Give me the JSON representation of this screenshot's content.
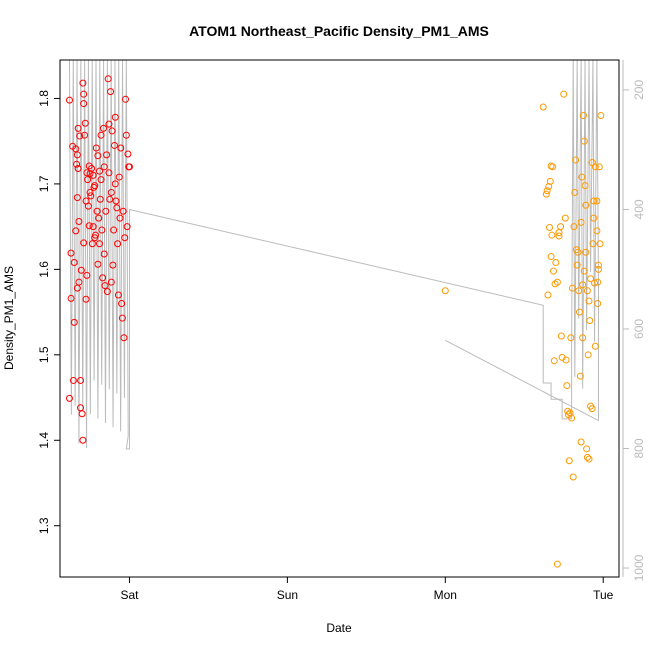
{
  "chart_data": {
    "type": "scatter",
    "title": "ATOM1 Northeast_Pacific Density_PM1_AMS",
    "xlabel": "Date",
    "ylabel": "Density_PM1_AMS",
    "x_ticks": [
      "Sat",
      "Sun",
      "Mon",
      "Tue"
    ],
    "x_tick_days": [
      1,
      2,
      3,
      4
    ],
    "xlim_days": [
      0.56,
      4.1
    ],
    "ylim": [
      1.24,
      1.845
    ],
    "y_ticks": [
      1.3,
      1.4,
      1.5,
      1.6,
      1.7,
      1.8
    ],
    "y2_label": "",
    "y2_ticks": [
      200,
      400,
      600,
      800,
      1000
    ],
    "y2lim": [
      1015,
      150
    ],
    "colors": {
      "points_early": "#ff0000",
      "points_late": "#ff9900",
      "altitude_line": "#bbbbbb",
      "axis": "#000000",
      "right_axis": "#bbbbbb"
    },
    "series": [
      {
        "color": "points_early",
        "points": [
          [
            0.62,
            1.449
          ],
          [
            0.62,
            1.798
          ],
          [
            0.63,
            1.566
          ],
          [
            0.63,
            1.619
          ],
          [
            0.64,
            1.744
          ],
          [
            0.645,
            1.47
          ],
          [
            0.65,
            1.538
          ],
          [
            0.65,
            1.608
          ],
          [
            0.66,
            1.645
          ],
          [
            0.66,
            1.741
          ],
          [
            0.665,
            1.723
          ],
          [
            0.67,
            1.578
          ],
          [
            0.67,
            1.684
          ],
          [
            0.67,
            1.734
          ],
          [
            0.675,
            1.765
          ],
          [
            0.675,
            1.718
          ],
          [
            0.68,
            1.656
          ],
          [
            0.68,
            1.585
          ],
          [
            0.685,
            1.756
          ],
          [
            0.69,
            1.438
          ],
          [
            0.69,
            1.47
          ],
          [
            0.695,
            1.599
          ],
          [
            0.7,
            1.431
          ],
          [
            0.705,
            1.4
          ],
          [
            0.705,
            1.818
          ],
          [
            0.71,
            1.805
          ],
          [
            0.71,
            1.794
          ],
          [
            0.71,
            1.631
          ],
          [
            0.715,
            1.757
          ],
          [
            0.72,
            1.771
          ],
          [
            0.725,
            1.68
          ],
          [
            0.725,
            1.565
          ],
          [
            0.73,
            1.713
          ],
          [
            0.73,
            1.593
          ],
          [
            0.735,
            1.705
          ],
          [
            0.74,
            1.674
          ],
          [
            0.745,
            1.721
          ],
          [
            0.745,
            1.651
          ],
          [
            0.75,
            1.712
          ],
          [
            0.75,
            1.69
          ],
          [
            0.755,
            1.686
          ],
          [
            0.76,
            1.718
          ],
          [
            0.765,
            1.63
          ],
          [
            0.77,
            1.71
          ],
          [
            0.77,
            1.65
          ],
          [
            0.775,
            1.696
          ],
          [
            0.78,
            1.698
          ],
          [
            0.78,
            1.637
          ],
          [
            0.785,
            1.64
          ],
          [
            0.79,
            1.742
          ],
          [
            0.795,
            1.668
          ],
          [
            0.8,
            1.733
          ],
          [
            0.8,
            1.606
          ],
          [
            0.805,
            1.66
          ],
          [
            0.81,
            1.715
          ],
          [
            0.81,
            1.63
          ],
          [
            0.815,
            1.682
          ],
          [
            0.82,
            1.757
          ],
          [
            0.82,
            1.705
          ],
          [
            0.825,
            1.646
          ],
          [
            0.83,
            1.59
          ],
          [
            0.835,
            1.765
          ],
          [
            0.84,
            1.72
          ],
          [
            0.84,
            1.618
          ],
          [
            0.845,
            1.581
          ],
          [
            0.85,
            1.668
          ],
          [
            0.855,
            1.734
          ],
          [
            0.86,
            1.574
          ],
          [
            0.865,
            1.823
          ],
          [
            0.87,
            1.713
          ],
          [
            0.87,
            1.77
          ],
          [
            0.875,
            1.682
          ],
          [
            0.88,
            1.808
          ],
          [
            0.885,
            1.69
          ],
          [
            0.885,
            1.585
          ],
          [
            0.89,
            1.762
          ],
          [
            0.895,
            1.605
          ],
          [
            0.9,
            1.646
          ],
          [
            0.905,
            1.745
          ],
          [
            0.91,
            1.778
          ],
          [
            0.91,
            1.7
          ],
          [
            0.915,
            1.68
          ],
          [
            0.92,
            1.672
          ],
          [
            0.925,
            1.63
          ],
          [
            0.93,
            1.57
          ],
          [
            0.935,
            1.708
          ],
          [
            0.94,
            1.66
          ],
          [
            0.945,
            1.742
          ],
          [
            0.95,
            1.56
          ],
          [
            0.955,
            1.543
          ],
          [
            0.96,
            1.668
          ],
          [
            0.965,
            1.52
          ],
          [
            0.97,
            1.637
          ],
          [
            0.975,
            1.799
          ],
          [
            0.98,
            1.757
          ],
          [
            0.985,
            1.65
          ],
          [
            0.99,
            1.735
          ],
          [
            0.995,
            1.72
          ],
          [
            1.0,
            1.72
          ]
        ]
      },
      {
        "color": "points_late",
        "points": [
          [
            3.0,
            1.575
          ],
          [
            3.62,
            1.79
          ],
          [
            3.64,
            1.688
          ],
          [
            3.645,
            1.692
          ],
          [
            3.65,
            1.57
          ],
          [
            3.655,
            1.697
          ],
          [
            3.66,
            1.649
          ],
          [
            3.665,
            1.703
          ],
          [
            3.67,
            1.615
          ],
          [
            3.67,
            1.721
          ],
          [
            3.675,
            1.64
          ],
          [
            3.68,
            1.72
          ],
          [
            3.685,
            1.598
          ],
          [
            3.69,
            1.493
          ],
          [
            3.695,
            1.583
          ],
          [
            3.7,
            1.608
          ],
          [
            3.71,
            1.585
          ],
          [
            3.71,
            1.255
          ],
          [
            3.72,
            1.639
          ],
          [
            3.72,
            1.643
          ],
          [
            3.73,
            1.65
          ],
          [
            3.735,
            1.522
          ],
          [
            3.74,
            1.497
          ],
          [
            3.75,
            1.805
          ],
          [
            3.76,
            1.66
          ],
          [
            3.765,
            1.494
          ],
          [
            3.77,
            1.464
          ],
          [
            3.775,
            1.434
          ],
          [
            3.78,
            1.43
          ],
          [
            3.785,
            1.376
          ],
          [
            3.79,
            1.432
          ],
          [
            3.795,
            1.52
          ],
          [
            3.8,
            1.426
          ],
          [
            3.805,
            1.578
          ],
          [
            3.81,
            1.357
          ],
          [
            3.815,
            1.65
          ],
          [
            3.82,
            1.69
          ],
          [
            3.825,
            1.728
          ],
          [
            3.83,
            1.623
          ],
          [
            3.835,
            1.605
          ],
          [
            3.84,
            1.62
          ],
          [
            3.845,
            1.575
          ],
          [
            3.85,
            1.55
          ],
          [
            3.855,
            1.475
          ],
          [
            3.86,
            1.398
          ],
          [
            3.865,
            1.708
          ],
          [
            3.87,
            1.52
          ],
          [
            3.875,
            1.78
          ],
          [
            3.88,
            1.75
          ],
          [
            3.885,
            1.698
          ],
          [
            3.89,
            1.675
          ],
          [
            3.895,
            1.39
          ],
          [
            3.9,
            1.38
          ],
          [
            3.905,
            1.5
          ],
          [
            3.91,
            1.378
          ],
          [
            3.915,
            1.54
          ],
          [
            3.92,
            1.589
          ],
          [
            3.93,
            1.725
          ],
          [
            3.935,
            1.63
          ],
          [
            3.94,
            1.66
          ],
          [
            3.945,
            1.584
          ],
          [
            3.95,
            1.51
          ],
          [
            3.96,
            1.68
          ],
          [
            3.965,
            1.56
          ],
          [
            3.97,
            1.605
          ],
          [
            3.86,
            1.655
          ],
          [
            3.87,
            1.582
          ],
          [
            3.88,
            1.598
          ],
          [
            3.89,
            1.62
          ],
          [
            3.9,
            1.575
          ],
          [
            3.91,
            1.563
          ],
          [
            3.92,
            1.44
          ],
          [
            3.93,
            1.437
          ],
          [
            3.94,
            1.68
          ],
          [
            3.95,
            1.72
          ],
          [
            3.96,
            1.645
          ],
          [
            3.965,
            1.585
          ],
          [
            3.97,
            1.6
          ],
          [
            3.975,
            1.72
          ],
          [
            3.98,
            1.63
          ],
          [
            3.985,
            1.78
          ]
        ]
      }
    ]
  }
}
